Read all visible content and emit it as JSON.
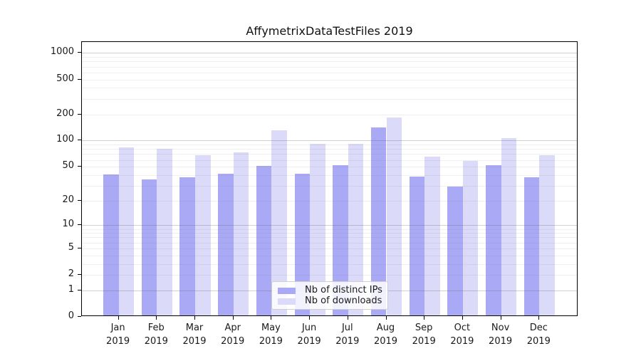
{
  "title": "AffymetrixDataTestFiles 2019",
  "colors": {
    "ips_bar": "#a9a9f5",
    "downloads_bar": "#dbdbf9",
    "axis": "#000000",
    "tick_text": "#1a1a1a"
  },
  "legend": {
    "position": "lower center",
    "entries": [
      {
        "label": "Nb of distinct IPs",
        "color": "#a9a9f5"
      },
      {
        "label": "Nb of downloads",
        "color": "#dbdbf9"
      }
    ]
  },
  "chart_data": {
    "type": "bar",
    "title": "AffymetrixDataTestFiles 2019",
    "categories": [
      "Jan 2019",
      "Feb 2019",
      "Mar 2019",
      "Apr 2019",
      "May 2019",
      "Jun 2019",
      "Jul 2019",
      "Aug 2019",
      "Sep 2019",
      "Oct 2019",
      "Nov 2019",
      "Dec 2019"
    ],
    "months": [
      "Jan",
      "Feb",
      "Mar",
      "Apr",
      "May",
      "Jun",
      "Jul",
      "Aug",
      "Sep",
      "Oct",
      "Nov",
      "Dec"
    ],
    "year": "2019",
    "series": [
      {
        "name": "Nb of distinct IPs",
        "values": [
          39,
          34,
          36,
          40,
          49,
          40,
          50,
          135,
          37,
          28,
          50,
          36
        ]
      },
      {
        "name": "Nb of downloads",
        "values": [
          80,
          78,
          65,
          70,
          126,
          88,
          88,
          177,
          63,
          56,
          102,
          65
        ]
      }
    ],
    "xlabel": "",
    "ylabel": "",
    "yscale": "log1p",
    "ylim": [
      0,
      1330
    ],
    "y_ticks": [
      0,
      1,
      2,
      5,
      10,
      20,
      50,
      100,
      200,
      500,
      1000
    ],
    "grid": "on",
    "legend_position": "lower center"
  }
}
